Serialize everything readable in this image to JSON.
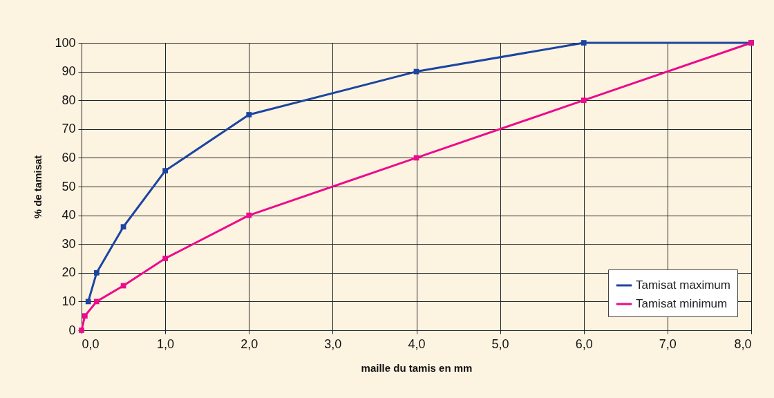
{
  "chart_data": {
    "type": "line",
    "xlabel": "maille du tamis en mm",
    "ylabel": "% de tamisat",
    "xlim": [
      0,
      8
    ],
    "ylim": [
      0,
      100
    ],
    "xticks": [
      {
        "value": 0,
        "label": "0,0"
      },
      {
        "value": 1,
        "label": "1,0"
      },
      {
        "value": 2,
        "label": "2,0"
      },
      {
        "value": 3,
        "label": "3,0"
      },
      {
        "value": 4,
        "label": "4,0"
      },
      {
        "value": 5,
        "label": "5,0"
      },
      {
        "value": 6,
        "label": "6,0"
      },
      {
        "value": 7,
        "label": "7,0"
      },
      {
        "value": 8,
        "label": "8,0"
      }
    ],
    "yticks": [
      0,
      10,
      20,
      30,
      40,
      50,
      60,
      70,
      80,
      90,
      100
    ],
    "grid": true,
    "legend": "bottom right",
    "marker": "square",
    "line_style": "solid",
    "series": [
      {
        "name": "Tamisat maximum",
        "color": "#1b45a0",
        "x": [
          0.08,
          0.18,
          0.5,
          1,
          2,
          4,
          6,
          8
        ],
        "values": [
          10,
          20,
          36,
          55.5,
          75,
          90,
          100,
          100
        ]
      },
      {
        "name": "Tamisat minimum",
        "color": "#ec0b8c",
        "x": [
          0,
          0.04,
          0.18,
          0.5,
          1,
          2,
          4,
          6,
          8
        ],
        "values": [
          0,
          5,
          10,
          15.5,
          25,
          40,
          60,
          80,
          100
        ]
      }
    ]
  }
}
